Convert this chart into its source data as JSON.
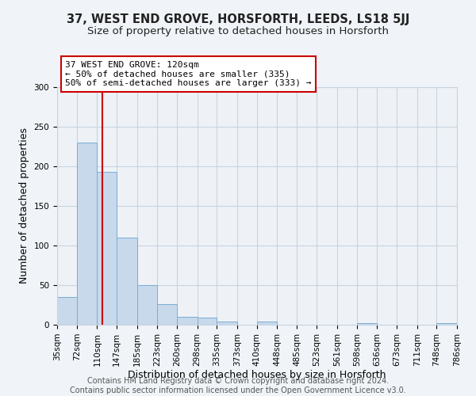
{
  "title": "37, WEST END GROVE, HORSFORTH, LEEDS, LS18 5JJ",
  "subtitle": "Size of property relative to detached houses in Horsforth",
  "xlabel": "Distribution of detached houses by size in Horsforth",
  "ylabel": "Number of detached properties",
  "bar_edges": [
    35,
    72,
    110,
    147,
    185,
    223,
    260,
    298,
    335,
    373,
    410,
    448,
    485,
    523,
    561,
    598,
    636,
    673,
    711,
    748,
    786
  ],
  "bar_heights": [
    35,
    230,
    193,
    110,
    50,
    26,
    10,
    9,
    4,
    0,
    4,
    0,
    0,
    0,
    0,
    2,
    0,
    0,
    0,
    2
  ],
  "bar_color": "#c8d9eb",
  "bar_edge_color": "#7aadd4",
  "vline_x": 120,
  "vline_color": "#cc0000",
  "annotation_title": "37 WEST END GROVE: 120sqm",
  "annotation_line1": "← 50% of detached houses are smaller (335)",
  "annotation_line2": "50% of semi-detached houses are larger (333) →",
  "annotation_box_facecolor": "#ffffff",
  "annotation_box_edgecolor": "#cc0000",
  "ylim": [
    0,
    300
  ],
  "yticks": [
    0,
    50,
    100,
    150,
    200,
    250,
    300
  ],
  "tick_labels": [
    "35sqm",
    "72sqm",
    "110sqm",
    "147sqm",
    "185sqm",
    "223sqm",
    "260sqm",
    "298sqm",
    "335sqm",
    "373sqm",
    "410sqm",
    "448sqm",
    "485sqm",
    "523sqm",
    "561sqm",
    "598sqm",
    "636sqm",
    "673sqm",
    "711sqm",
    "748sqm",
    "786sqm"
  ],
  "footer_line1": "Contains HM Land Registry data © Crown copyright and database right 2024.",
  "footer_line2": "Contains public sector information licensed under the Open Government Licence v3.0.",
  "bg_color": "#f0f4f8",
  "plot_bg_color": "#eef2f7",
  "grid_color": "#c8d4e0",
  "title_fontsize": 10.5,
  "subtitle_fontsize": 9.5,
  "axis_label_fontsize": 9,
  "tick_fontsize": 7.5,
  "footer_fontsize": 7
}
